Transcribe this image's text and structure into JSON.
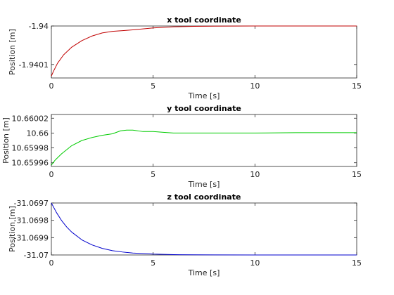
{
  "chart_data": [
    {
      "type": "line",
      "title": "x tool coordinate",
      "xlabel": "Time [s]",
      "ylabel": "Position [m]",
      "xlim": [
        0,
        15
      ],
      "ylim": [
        -1.940135,
        -1.94
      ],
      "xticks": [
        0,
        5,
        10,
        15
      ],
      "xtick_labels": [
        "0",
        "5",
        "10",
        "15"
      ],
      "yticks": [
        -1.94,
        -1.9401
      ],
      "ytick_labels": [
        "-1.94",
        "-1.9401"
      ],
      "grid": false,
      "color": "#c00000",
      "series": [
        {
          "x": [
            0,
            0.1,
            0.3,
            0.6,
            1.0,
            1.5,
            2.0,
            2.5,
            3.0,
            3.5,
            4.0,
            5.0,
            6.0,
            7.0,
            8.0,
            10.0,
            12.0,
            15.0
          ],
          "y": [
            -1.94013,
            -1.940118,
            -1.940097,
            -1.940075,
            -1.940055,
            -1.940038,
            -1.940026,
            -1.940018,
            -1.940014,
            -1.940012,
            -1.94001,
            -1.940005,
            -1.940002,
            -1.940001,
            -1.9400005,
            -1.94,
            -1.94,
            -1.94
          ]
        }
      ]
    },
    {
      "type": "line",
      "title": "y tool coordinate",
      "xlabel": "Time [s]",
      "ylabel": "Position [m]",
      "xlim": [
        0,
        15
      ],
      "ylim": [
        10.659955,
        10.660025
      ],
      "xticks": [
        0,
        5,
        10,
        15
      ],
      "xtick_labels": [
        "0",
        "5",
        "10",
        "15"
      ],
      "yticks": [
        10.65996,
        10.65998,
        10.66,
        10.66002
      ],
      "ytick_labels": [
        "10.65996",
        "10.65998",
        "10.66",
        "10.66002"
      ],
      "grid": false,
      "color": "#00cc00",
      "series": [
        {
          "x": [
            0,
            0.2,
            0.5,
            1.0,
            1.5,
            2.0,
            2.5,
            3.0,
            3.4,
            3.7,
            4.0,
            4.5,
            5.0,
            5.5,
            6.0,
            7.0,
            8.0,
            10.0,
            12.0,
            15.0
          ],
          "y": [
            10.659957,
            10.659964,
            10.659972,
            10.659983,
            10.65999,
            10.659994,
            10.659997,
            10.659999,
            10.660003,
            10.660004,
            10.660004,
            10.660002,
            10.660002,
            10.660001,
            10.66,
            10.66,
            10.66,
            10.66,
            10.6600005,
            10.6600005
          ]
        }
      ]
    },
    {
      "type": "line",
      "title": "z tool coordinate",
      "xlabel": "Time [s]",
      "ylabel": "Position [m]",
      "xlim": [
        0,
        15
      ],
      "ylim": [
        -31.07,
        -31.0697
      ],
      "xticks": [
        0,
        5,
        10,
        15
      ],
      "xtick_labels": [
        "0",
        "5",
        "10",
        "15"
      ],
      "yticks": [
        -31.0697,
        -31.0698,
        -31.0699,
        -31.07
      ],
      "ytick_labels": [
        "-31.0697",
        "-31.0698",
        "-31.0699",
        "-31.07"
      ],
      "grid": false,
      "color": "#0000cc",
      "series": [
        {
          "x": [
            0,
            0.25,
            0.5,
            0.75,
            1.0,
            1.5,
            2.0,
            2.5,
            3.0,
            3.5,
            4.0,
            5.0,
            6.0,
            7.0,
            8.0,
            10.0,
            12.0,
            15.0
          ],
          "y": [
            -31.0697,
            -31.069755,
            -31.069801,
            -31.069838,
            -31.069868,
            -31.069913,
            -31.069942,
            -31.069962,
            -31.069975,
            -31.069983,
            -31.069989,
            -31.069995,
            -31.069998,
            -31.069999,
            -31.0699995,
            -31.07,
            -31.07,
            -31.07
          ]
        }
      ]
    }
  ]
}
